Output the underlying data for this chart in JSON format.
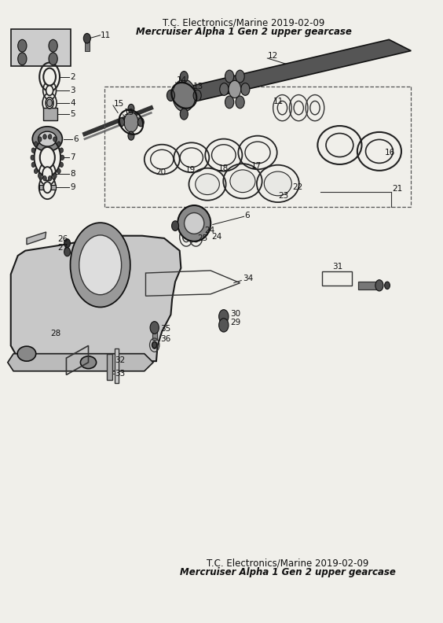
{
  "title_top_line1": "T.C. Electronics/Marine 2019-02-09",
  "title_top_line2": "Mercruiser Alpha 1 Gen 2 upper gearcase",
  "title_bot_line1": "T.C. Electronics/Marine 2019-02-09",
  "title_bot_line2": "Mercruiser Alpha 1 Gen 2 upper gearcase",
  "bg_color": "#f0efea",
  "fig_width": 5.64,
  "fig_height": 7.92,
  "dpi": 100
}
